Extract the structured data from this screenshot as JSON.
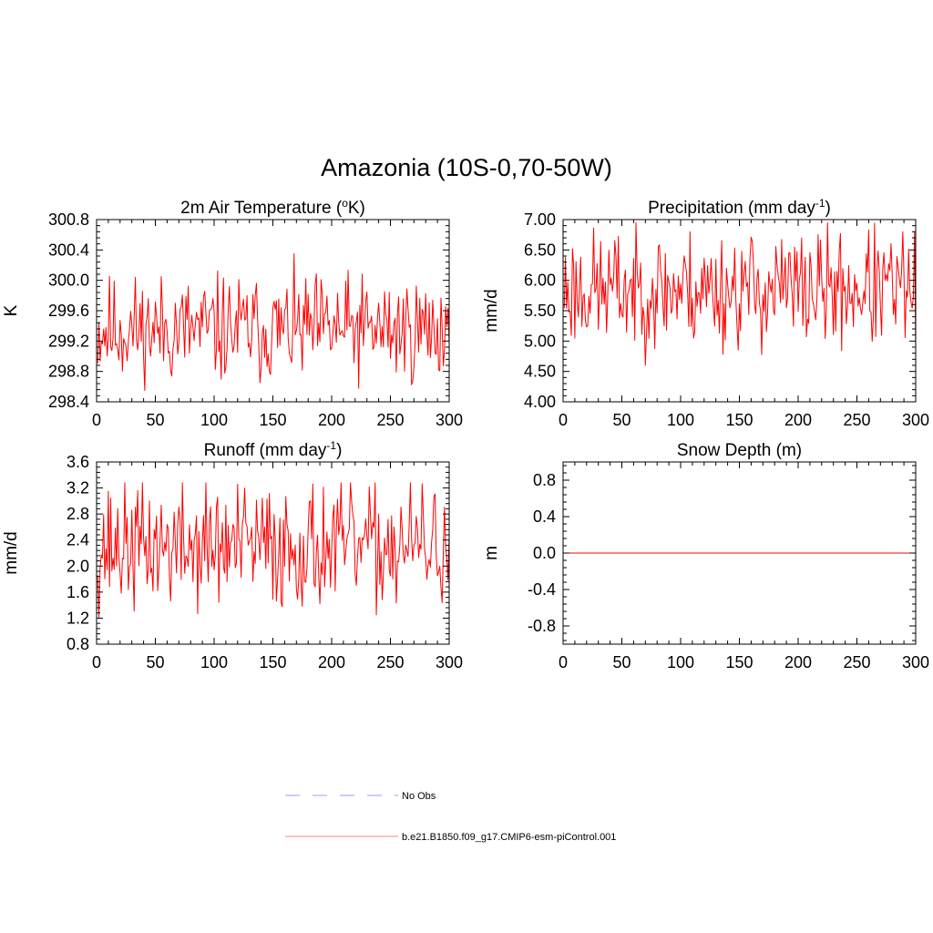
{
  "suptitle": "Amazonia (10S-0,70-50W)",
  "legend": {
    "entries": [
      {
        "label": "No Obs",
        "color": "#9999ff",
        "style": "dashed"
      },
      {
        "label": "b.e21.B1850.f09_g17.CMIP6-esm-piControl.001",
        "color": "#ff8080",
        "style": "solid"
      }
    ]
  },
  "chart_data": [
    {
      "type": "line",
      "title": {
        "main": "2m Air Temperature (",
        "sup": "o",
        "tail": "K)"
      },
      "ylabel": "K",
      "xlim": [
        0,
        300
      ],
      "ylim": [
        298.4,
        300.8
      ],
      "xticks": [
        0,
        50,
        100,
        150,
        200,
        250,
        300
      ],
      "yticks": [
        298.4,
        298.8,
        299.2,
        299.6,
        300.0,
        300.4,
        300.8
      ],
      "ytick_labels": [
        "298.4",
        "298.8",
        "299.2",
        "299.6",
        "300.0",
        "300.4",
        "300.8"
      ],
      "series": [
        {
          "name": "b.e21.B1850.f09_g17.CMIP6-esm-piControl.001",
          "color": "#ff0000",
          "gen": {
            "seed": 11,
            "mean": 299.35,
            "amp": 0.35,
            "min": 298.55,
            "max": 300.6
          }
        }
      ]
    },
    {
      "type": "line",
      "title": {
        "main": "Precipitation (mm day",
        "sup": "-1",
        "tail": ")"
      },
      "ylabel": "mm/d",
      "xlim": [
        0,
        300
      ],
      "ylim": [
        4.0,
        7.0
      ],
      "xticks": [
        0,
        50,
        100,
        150,
        200,
        250,
        300
      ],
      "yticks": [
        4.0,
        4.5,
        5.0,
        5.5,
        6.0,
        6.5,
        7.0
      ],
      "ytick_labels": [
        "4.00",
        "4.50",
        "5.00",
        "5.50",
        "6.00",
        "6.50",
        "7.00"
      ],
      "series": [
        {
          "name": "b.e21.B1850.f09_g17.CMIP6-esm-piControl.001",
          "color": "#ff0000",
          "gen": {
            "seed": 23,
            "mean": 5.85,
            "amp": 0.48,
            "min": 4.4,
            "max": 6.95
          }
        }
      ]
    },
    {
      "type": "line",
      "title": {
        "main": "Runoff (mm day",
        "sup": "-1",
        "tail": ")"
      },
      "ylabel": "mm/d",
      "xlim": [
        0,
        300
      ],
      "ylim": [
        0.8,
        3.6
      ],
      "xticks": [
        0,
        50,
        100,
        150,
        200,
        250,
        300
      ],
      "yticks": [
        0.8,
        1.2,
        1.6,
        2.0,
        2.4,
        2.8,
        3.2,
        3.6
      ],
      "ytick_labels": [
        "0.8",
        "1.2",
        "1.6",
        "2.0",
        "2.4",
        "2.8",
        "3.2",
        "3.6"
      ],
      "series": [
        {
          "name": "b.e21.B1850.f09_g17.CMIP6-esm-piControl.001",
          "color": "#ff0000",
          "gen": {
            "seed": 37,
            "mean": 2.3,
            "amp": 0.48,
            "min": 1.0,
            "max": 3.28
          }
        }
      ]
    },
    {
      "type": "line",
      "title": {
        "main": "Snow Depth (m)",
        "sup": "",
        "tail": ""
      },
      "ylabel": "m",
      "xlim": [
        0,
        300
      ],
      "ylim": [
        -1.0,
        1.0
      ],
      "xticks": [
        0,
        50,
        100,
        150,
        200,
        250,
        300
      ],
      "yticks": [
        -0.8,
        -0.4,
        0.0,
        0.4,
        0.8
      ],
      "ytick_labels": [
        "-0.8",
        "-0.4",
        "0.0",
        "0.4",
        "0.8"
      ],
      "series": [
        {
          "name": "b.e21.B1850.f09_g17.CMIP6-esm-piControl.001",
          "color": "#ff0000",
          "constant": 0.0
        }
      ]
    }
  ]
}
